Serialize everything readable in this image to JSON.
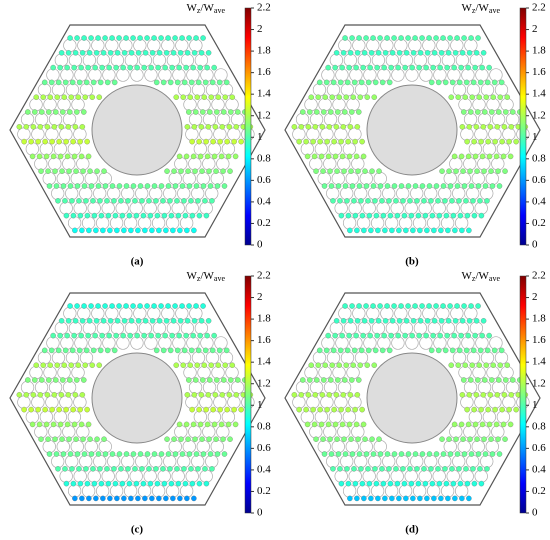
{
  "chart_data": [
    {
      "type": "heatmap",
      "caption": "(a)",
      "colorbar_label": [
        "W",
        "z",
        "/W",
        "ave"
      ],
      "clim": [
        0,
        2.2
      ],
      "cticks": [
        0,
        0.2,
        0.4,
        0.6,
        0.8,
        1,
        1.2,
        1.4,
        1.6,
        1.8,
        2,
        2.2
      ],
      "row_values": [
        0.95,
        0.95,
        1.0,
        1.05,
        1.2,
        1.1,
        1.2,
        1.25,
        1.15,
        1.1,
        1.05,
        1.0,
        0.95,
        0.85
      ]
    },
    {
      "type": "heatmap",
      "caption": "(b)",
      "colorbar_label": [
        "W",
        "z",
        "/W",
        "ave"
      ],
      "clim": [
        0,
        2.2
      ],
      "cticks": [
        0,
        0.2,
        0.4,
        0.6,
        0.8,
        1,
        1.2,
        1.4,
        1.6,
        1.8,
        2,
        2.2
      ],
      "row_values": [
        1.0,
        0.95,
        1.0,
        1.05,
        1.15,
        1.1,
        1.2,
        1.2,
        1.15,
        1.1,
        1.05,
        1.0,
        0.95,
        0.9
      ]
    },
    {
      "type": "heatmap",
      "caption": "(c)",
      "colorbar_label": [
        "W",
        "z",
        "/W",
        "ave"
      ],
      "clim": [
        0,
        2.2
      ],
      "cticks": [
        0,
        0.2,
        0.4,
        0.6,
        0.8,
        1,
        1.2,
        1.4,
        1.6,
        1.8,
        2,
        2.2
      ],
      "row_values": [
        0.9,
        0.95,
        1.0,
        1.05,
        1.2,
        1.1,
        1.2,
        1.25,
        1.15,
        1.1,
        1.05,
        1.0,
        0.9,
        0.6
      ]
    },
    {
      "type": "heatmap",
      "caption": "(d)",
      "colorbar_label": [
        "W",
        "z",
        "/W",
        "ave"
      ],
      "clim": [
        0,
        2.2
      ],
      "cticks": [
        0,
        0.2,
        0.4,
        0.6,
        0.8,
        1,
        1.2,
        1.4,
        1.6,
        1.8,
        2,
        2.2
      ],
      "row_values": [
        0.95,
        0.95,
        1.0,
        1.05,
        1.15,
        1.1,
        1.2,
        1.2,
        1.15,
        1.1,
        1.05,
        1.0,
        0.9,
        0.7
      ]
    }
  ]
}
